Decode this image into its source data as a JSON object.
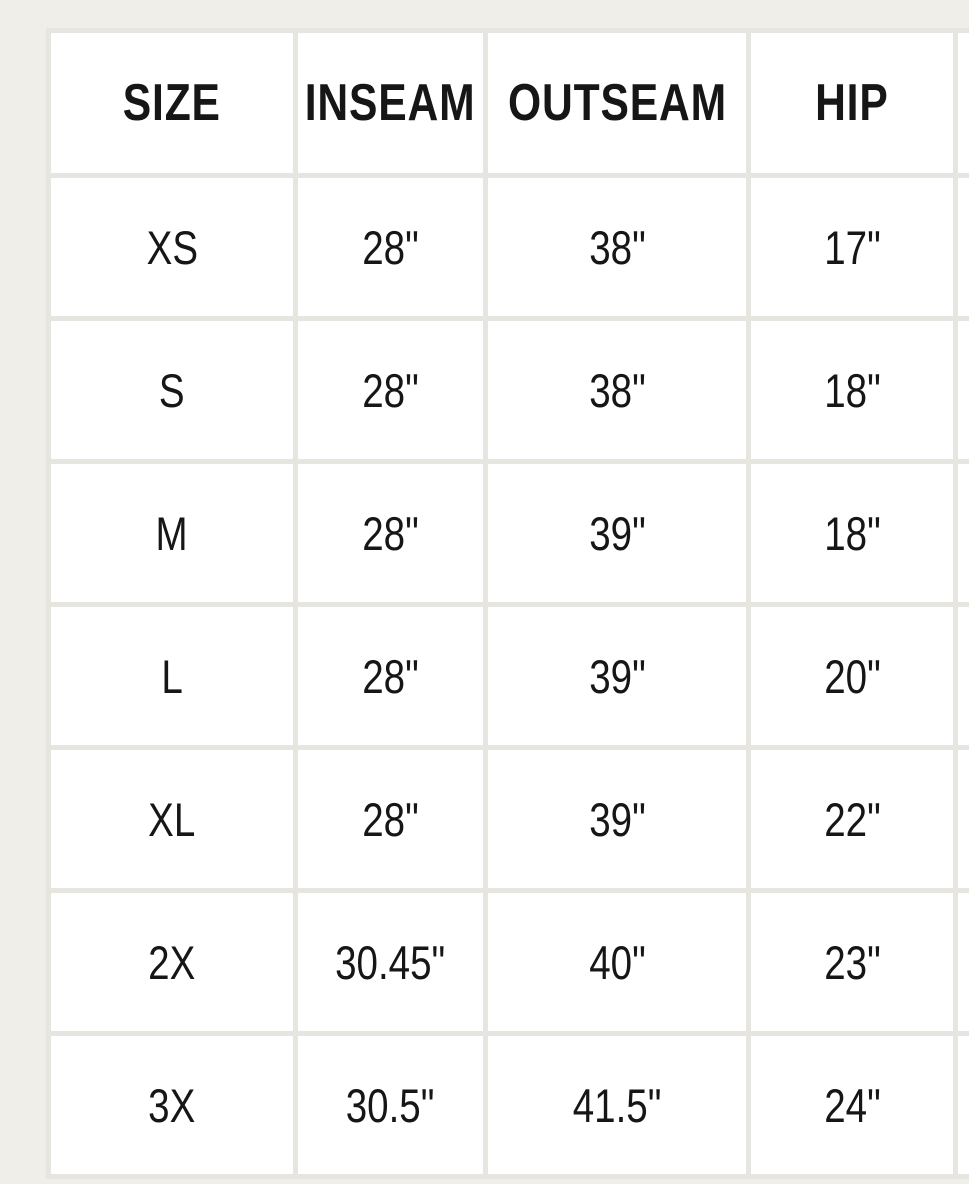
{
  "size_chart": {
    "columns": [
      {
        "key": "size",
        "label": "SIZE"
      },
      {
        "key": "inseam",
        "label": "INSEAM"
      },
      {
        "key": "outseam",
        "label": "OUTSEAM"
      },
      {
        "key": "hip",
        "label": "HIP"
      },
      {
        "key": "extra",
        "label": ""
      }
    ],
    "rows": [
      {
        "size": "XS",
        "inseam": "28\"",
        "outseam": "38\"",
        "hip": "17\""
      },
      {
        "size": "S",
        "inseam": "28\"",
        "outseam": "38\"",
        "hip": "18\""
      },
      {
        "size": "M",
        "inseam": "28\"",
        "outseam": "39\"",
        "hip": "18\""
      },
      {
        "size": "L",
        "inseam": "28\"",
        "outseam": "39\"",
        "hip": "20\""
      },
      {
        "size": "XL",
        "inseam": "28\"",
        "outseam": "39\"",
        "hip": "22\""
      },
      {
        "size": "2X",
        "inseam": "30.45\"",
        "outseam": "40\"",
        "hip": "23\""
      },
      {
        "size": "3X",
        "inseam": "30.5\"",
        "outseam": "41.5\"",
        "hip": "24\""
      }
    ],
    "unit": "inches"
  },
  "colors": {
    "page_background": "#f0eee8",
    "cell_background": "#ffffff",
    "grid_line": "#e7e5df",
    "text": "#161616"
  }
}
